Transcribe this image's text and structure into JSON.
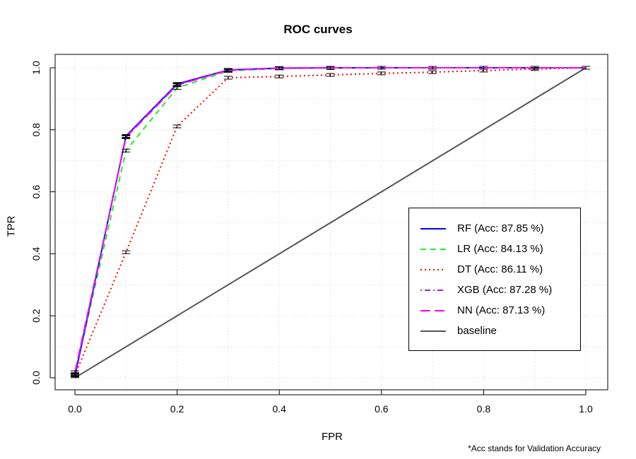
{
  "chart_data": {
    "type": "line",
    "title": "ROC curves",
    "xlabel": "FPR",
    "ylabel": "TPR",
    "xlim": [
      0,
      1
    ],
    "ylim": [
      0,
      1
    ],
    "xticks": [
      "0.0",
      "0.2",
      "0.4",
      "0.6",
      "0.8",
      "1.0"
    ],
    "yticks": [
      "0.0",
      "0.2",
      "0.4",
      "0.6",
      "0.8",
      "1.0"
    ],
    "grid": true,
    "legend_position": "right-center",
    "footnote": "*Acc stands for Validation Accuracy",
    "series": [
      {
        "name": "RF (Acc: 87.85 %)",
        "color": "#0000ff",
        "dash": "solid",
        "x": [
          0,
          0.1,
          0.2,
          0.3,
          0.4,
          0.5,
          0.6,
          0.7,
          0.8,
          0.9,
          1.0
        ],
        "y": [
          0.005,
          0.78,
          0.948,
          0.993,
          0.999,
          1.0,
          1.0,
          1.0,
          1.0,
          1.0,
          1.0
        ]
      },
      {
        "name": "LR (Acc: 84.13 %)",
        "color": "#22ee22",
        "dash": "dashed",
        "x": [
          0,
          0.1,
          0.2,
          0.3,
          0.4,
          0.5,
          0.6,
          0.7,
          0.8,
          0.9,
          1.0
        ],
        "y": [
          0.01,
          0.733,
          0.935,
          0.99,
          0.998,
          0.999,
          1.0,
          1.0,
          1.0,
          1.0,
          1.0
        ]
      },
      {
        "name": "DT (Acc: 86.11 %)",
        "color": "#ff0000",
        "dash": "dotted",
        "x": [
          0,
          0.1,
          0.2,
          0.3,
          0.4,
          0.5,
          0.6,
          0.7,
          0.8,
          0.9,
          1.0
        ],
        "y": [
          0.008,
          0.405,
          0.811,
          0.968,
          0.972,
          0.977,
          0.982,
          0.986,
          0.991,
          0.996,
          1.0
        ]
      },
      {
        "name": "XGB (Acc: 87.28 %)",
        "color": "#8a2be2",
        "dash": "dotdash",
        "x": [
          0,
          0.1,
          0.2,
          0.3,
          0.4,
          0.5,
          0.6,
          0.7,
          0.8,
          0.9,
          1.0
        ],
        "y": [
          0.012,
          0.778,
          0.946,
          0.993,
          0.999,
          1.0,
          1.0,
          1.0,
          1.0,
          1.0,
          1.0
        ]
      },
      {
        "name": "NN (Acc: 87.13 %)",
        "color": "#ff00ff",
        "dash": "longdash",
        "x": [
          0,
          0.1,
          0.2,
          0.3,
          0.4,
          0.5,
          0.6,
          0.7,
          0.8,
          0.9,
          1.0
        ],
        "y": [
          0.018,
          0.776,
          0.944,
          0.992,
          0.999,
          1.0,
          1.0,
          1.0,
          1.0,
          1.0,
          1.0
        ]
      },
      {
        "name": "baseline",
        "color": "#555555",
        "dash": "solid",
        "x": [
          0,
          1.0
        ],
        "y": [
          0,
          1.0
        ]
      }
    ]
  }
}
